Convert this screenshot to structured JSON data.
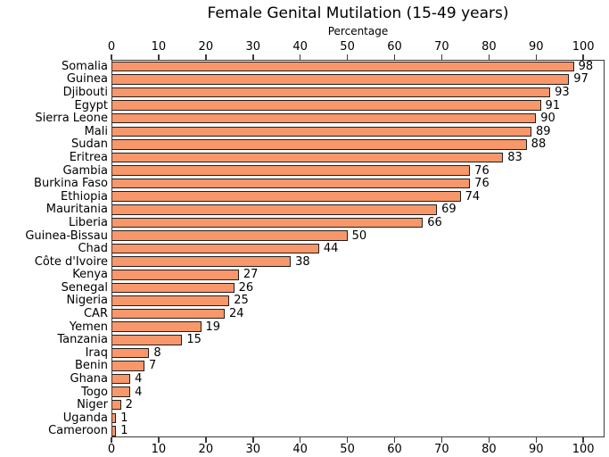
{
  "chart_data": {
    "type": "bar",
    "orientation": "horizontal",
    "title": "Female Genital Mutilation (15-49 years)",
    "xlabel": "Percentage",
    "categories": [
      "Somalia",
      "Guinea",
      "Djibouti",
      "Egypt",
      "Sierra Leone",
      "Mali",
      "Sudan",
      "Eritrea",
      "Gambia",
      "Burkina Faso",
      "Ethiopia",
      "Mauritania",
      "Liberia",
      "Guinea-Bissau",
      "Chad",
      "Côte d'Ivoire",
      "Kenya",
      "Senegal",
      "Nigeria",
      "CAR",
      "Yemen",
      "Tanzania",
      "Iraq",
      "Benin",
      "Ghana",
      "Togo",
      "Niger",
      "Uganda",
      "Cameroon"
    ],
    "values": [
      98,
      97,
      93,
      91,
      90,
      89,
      88,
      83,
      76,
      76,
      74,
      69,
      66,
      50,
      44,
      38,
      27,
      26,
      25,
      24,
      19,
      15,
      8,
      7,
      4,
      4,
      2,
      1,
      1
    ],
    "value_labels": [
      "98",
      "97",
      "93",
      "91",
      "90",
      "89",
      "88",
      "83",
      "76",
      "76",
      "74",
      "69",
      "66",
      "50",
      "44",
      "38",
      "27",
      "26",
      "25",
      "24",
      "19",
      "15",
      "8",
      "7",
      "4",
      "4",
      "2",
      "1",
      "1"
    ],
    "xticks": [
      0,
      10,
      20,
      30,
      40,
      50,
      60,
      70,
      80,
      90,
      100
    ],
    "xlim": [
      0,
      104.5
    ],
    "grid": false,
    "legend": null,
    "axes_box": true,
    "bar_color": "#F7976A",
    "bar_edge_color": "#1f1f1f",
    "axis_color": "#3a3a3a",
    "text_color": "#000000",
    "background_color": "#ffffff"
  }
}
